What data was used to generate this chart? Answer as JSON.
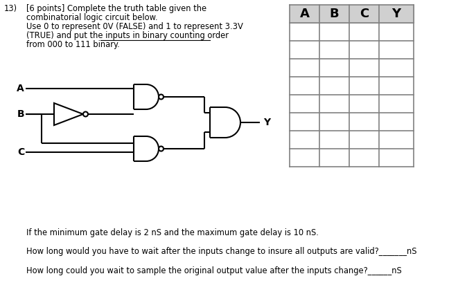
{
  "title_number": "13)",
  "title_points": "[6 points] Complete the truth table given the",
  "title_line2": "combinatorial logic circuit below.",
  "title_line3": "Use 0 to represent 0V (FALSE) and 1 to represent 3.3V",
  "title_line4": "(TRUE) and put the inputs in binary counting order",
  "title_line5": "from 000 to 111 binary.",
  "underline_text": "inputs in binary counting",
  "table_headers": [
    "A",
    "B",
    "C",
    "Y"
  ],
  "table_rows": 8,
  "footer_line1": "If the minimum gate delay is 2 nS and the maximum gate delay is 10 nS.",
  "footer_line2": "How long would you have to wait after the inputs change to insure all outputs are valid?_______nS",
  "footer_line3": "How long could you wait to sample the original output value after the inputs change?______nS",
  "bg_color": "#ffffff",
  "table_header_bg": "#d0d0d0",
  "table_border_color": "#808080",
  "text_color": "#000000",
  "circuit_color": "#000000"
}
